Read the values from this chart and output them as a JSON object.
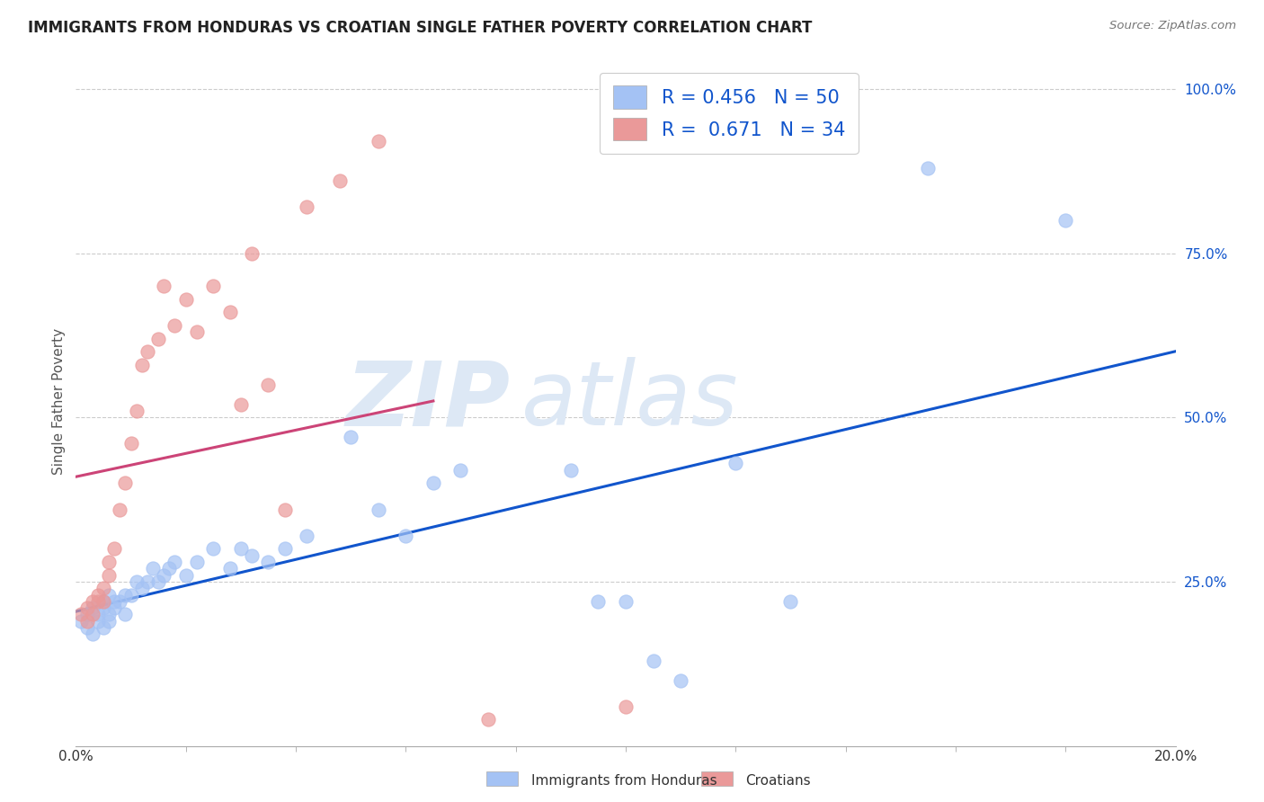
{
  "title": "IMMIGRANTS FROM HONDURAS VS CROATIAN SINGLE FATHER POVERTY CORRELATION CHART",
  "source": "Source: ZipAtlas.com",
  "ylabel": "Single Father Poverty",
  "blue_R": "0.456",
  "blue_N": "50",
  "pink_R": "0.671",
  "pink_N": "34",
  "blue_color": "#a4c2f4",
  "pink_color": "#ea9999",
  "blue_line_color": "#1155cc",
  "pink_line_color": "#cc4477",
  "legend_label_blue": "Immigrants from Honduras",
  "legend_label_pink": "Croatians",
  "x_min": 0.0,
  "x_max": 0.2,
  "y_min": 0.0,
  "y_max": 1.05,
  "blue_x": [
    0.001,
    0.002,
    0.002,
    0.003,
    0.003,
    0.004,
    0.004,
    0.005,
    0.005,
    0.005,
    0.006,
    0.006,
    0.006,
    0.007,
    0.007,
    0.008,
    0.009,
    0.009,
    0.01,
    0.011,
    0.012,
    0.013,
    0.014,
    0.015,
    0.016,
    0.017,
    0.018,
    0.02,
    0.022,
    0.025,
    0.028,
    0.03,
    0.032,
    0.035,
    0.038,
    0.042,
    0.05,
    0.055,
    0.06,
    0.065,
    0.07,
    0.09,
    0.095,
    0.1,
    0.105,
    0.11,
    0.12,
    0.13,
    0.155,
    0.18
  ],
  "blue_y": [
    0.19,
    0.2,
    0.18,
    0.21,
    0.17,
    0.19,
    0.2,
    0.21,
    0.18,
    0.22,
    0.2,
    0.19,
    0.23,
    0.21,
    0.22,
    0.22,
    0.2,
    0.23,
    0.23,
    0.25,
    0.24,
    0.25,
    0.27,
    0.25,
    0.26,
    0.27,
    0.28,
    0.26,
    0.28,
    0.3,
    0.27,
    0.3,
    0.29,
    0.28,
    0.3,
    0.32,
    0.47,
    0.36,
    0.32,
    0.4,
    0.42,
    0.42,
    0.22,
    0.22,
    0.13,
    0.1,
    0.43,
    0.22,
    0.88,
    0.8
  ],
  "pink_x": [
    0.001,
    0.002,
    0.002,
    0.003,
    0.003,
    0.004,
    0.004,
    0.005,
    0.005,
    0.006,
    0.006,
    0.007,
    0.008,
    0.009,
    0.01,
    0.011,
    0.012,
    0.013,
    0.015,
    0.016,
    0.018,
    0.02,
    0.022,
    0.025,
    0.028,
    0.03,
    0.032,
    0.035,
    0.038,
    0.042,
    0.048,
    0.055,
    0.075,
    0.1
  ],
  "pink_y": [
    0.2,
    0.21,
    0.19,
    0.22,
    0.2,
    0.23,
    0.22,
    0.24,
    0.22,
    0.26,
    0.28,
    0.3,
    0.36,
    0.4,
    0.46,
    0.51,
    0.58,
    0.6,
    0.62,
    0.7,
    0.64,
    0.68,
    0.63,
    0.7,
    0.66,
    0.52,
    0.75,
    0.55,
    0.36,
    0.82,
    0.86,
    0.92,
    0.04,
    0.06
  ],
  "background_color": "#ffffff",
  "grid_color": "#cccccc",
  "watermark_zip": "ZIP",
  "watermark_atlas": "atlas",
  "watermark_color": "#dde8f5"
}
